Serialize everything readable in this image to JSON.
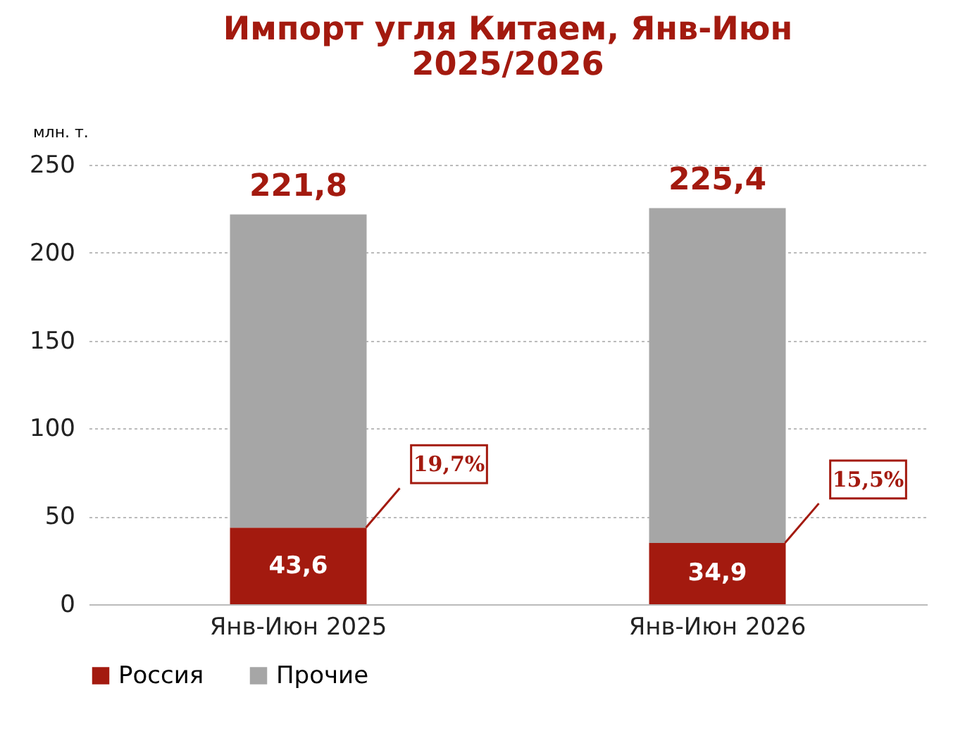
{
  "chart_data": {
    "type": "bar",
    "title": "Импорт угля Китаем, Янв-Июн\n2025/2026",
    "ylabel": "млн. т.",
    "categories": [
      "Янв-Июн 2025",
      "Янв-Июн 2026"
    ],
    "series": [
      {
        "name": "Россия",
        "color": "#a31a0f",
        "values": [
          43.6,
          34.9
        ],
        "value_labels": [
          "43,6",
          "34,9"
        ]
      },
      {
        "name": "Прочие",
        "color": "#a6a6a6",
        "values": [
          178.2,
          190.5
        ]
      }
    ],
    "stacked": true,
    "totals": [
      "221,8",
      "225,4"
    ],
    "annotations": [
      "19,7%",
      "15,5%"
    ],
    "ylim": [
      0,
      250
    ],
    "yticks": [
      0,
      50,
      100,
      150,
      200,
      250
    ],
    "grid": "y",
    "legend": "bottom"
  }
}
